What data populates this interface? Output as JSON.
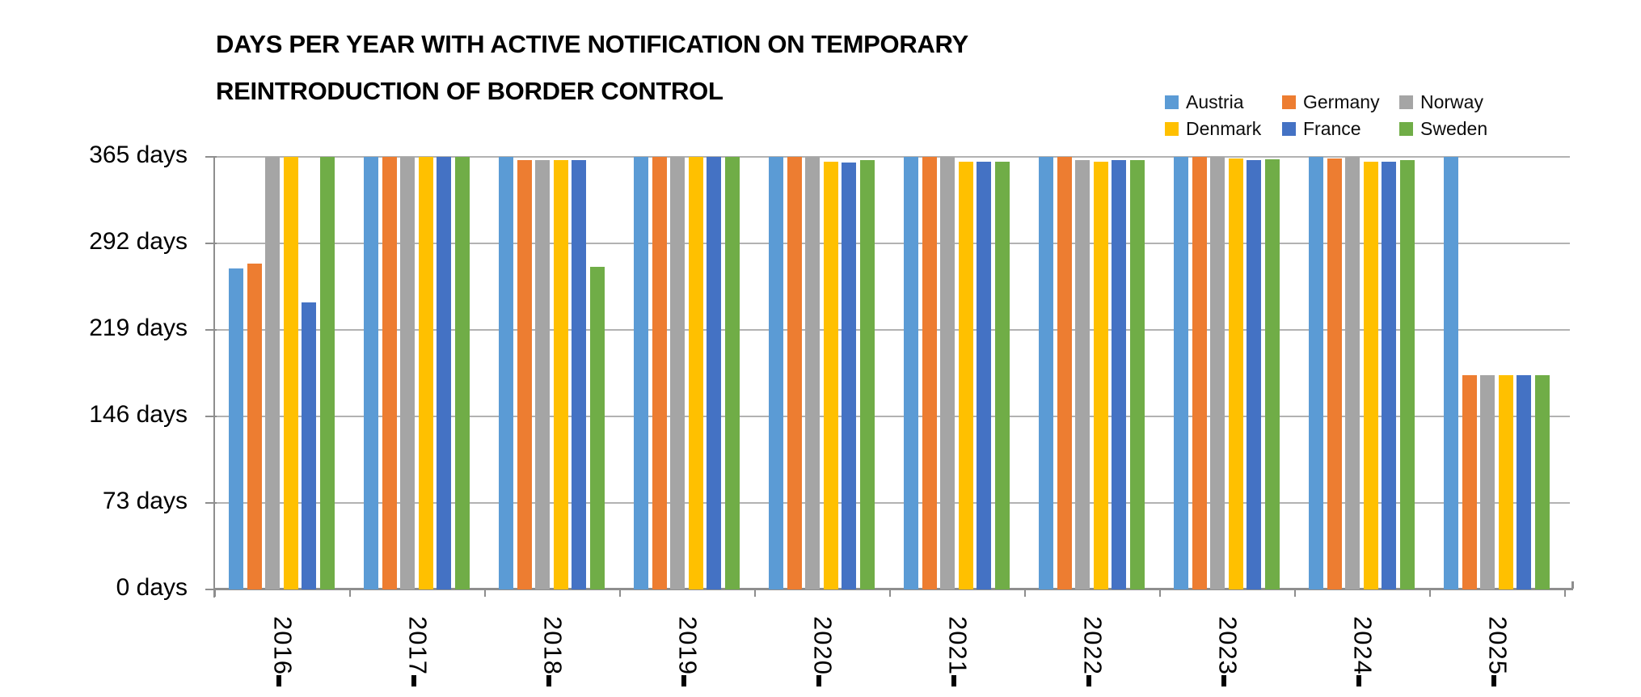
{
  "title": "DAYS PER YEAR WITH ACTIVE NOTIFICATION ON TEMPORARY REINTRODUCTION OF BORDER CONTROL",
  "axis_colors": {
    "gridline": "#b2b2b2",
    "axis": "#8e8e8e"
  },
  "chart_data": {
    "type": "bar",
    "title": "DAYS PER YEAR WITH ACTIVE NOTIFICATION ON TEMPORARY REINTRODUCTION OF BORDER CONTROL",
    "categories": [
      "2016",
      "2017",
      "2018",
      "2019",
      "2020",
      "2021",
      "2022",
      "2023",
      "2024",
      "2025"
    ],
    "series": [
      {
        "name": "Austria",
        "color": "#5B9BD5",
        "values": [
          271,
          365,
          365,
          365,
          365,
          365,
          365,
          365,
          365,
          365
        ]
      },
      {
        "name": "Germany",
        "color": "#ED7D31",
        "values": [
          275,
          365,
          362,
          365,
          365,
          365,
          365,
          365,
          364,
          181
        ]
      },
      {
        "name": "Norway",
        "color": "#A5A5A5",
        "values": [
          365,
          365,
          362,
          365,
          365,
          365,
          362,
          365,
          365,
          181
        ]
      },
      {
        "name": "Denmark",
        "color": "#FFC000",
        "values": [
          365,
          365,
          362,
          365,
          361,
          361,
          361,
          364,
          361,
          181
        ]
      },
      {
        "name": "France",
        "color": "#4472C4",
        "values": [
          242,
          365,
          362,
          365,
          360,
          361,
          362,
          362,
          361,
          181
        ]
      },
      {
        "name": "Sweden",
        "color": "#70AD47",
        "values": [
          365,
          365,
          272,
          365,
          362,
          361,
          362,
          363,
          362,
          181
        ]
      }
    ],
    "y_ticks": [
      {
        "value": 0,
        "label": "0 days"
      },
      {
        "value": 73,
        "label": "73 days"
      },
      {
        "value": 146,
        "label": "146 days"
      },
      {
        "value": 219,
        "label": "219 days"
      },
      {
        "value": 292,
        "label": "292 days"
      },
      {
        "value": 365,
        "label": "365 days"
      }
    ],
    "ylim": [
      0,
      365
    ],
    "xlabel": "",
    "ylabel": "",
    "grid": true,
    "legend_position": "top-right",
    "legend_rows": 2,
    "legend_columns": 3
  }
}
